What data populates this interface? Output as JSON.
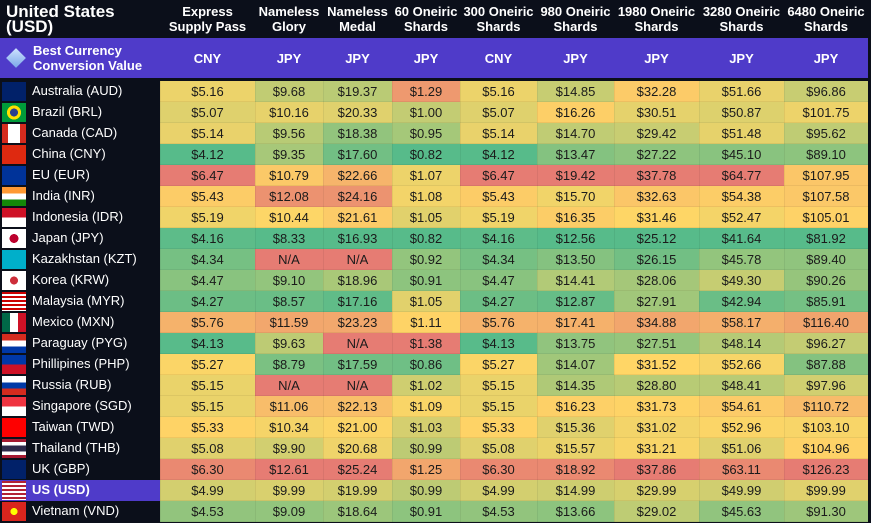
{
  "title": "United States (USD)",
  "columns": [
    "Express Supply Pass",
    "Nameless Glory",
    "Nameless Medal",
    "60 Oneiric Shards",
    "300 Oneiric Shards",
    "980 Oneiric Shards",
    "1980 Oneiric Shards",
    "3280 Oneiric Shards",
    "6480 Oneiric Shards"
  ],
  "best": {
    "label": "Best Currency Conversion Value",
    "icon": "gem-icon",
    "values": [
      "CNY",
      "JPY",
      "JPY",
      "JPY",
      "CNY",
      "JPY",
      "JPY",
      "JPY",
      "JPY"
    ]
  },
  "colors": {
    "low": "#57bb8a",
    "mid": "#ffd666",
    "high": "#e67c73",
    "highlight": "#4f3bc9",
    "background": "#0b0f1a"
  },
  "rows": [
    {
      "country": "Australia (AUD)",
      "flag": "au",
      "values": [
        "$5.16",
        "$9.68",
        "$19.37",
        "$1.29",
        "$5.16",
        "$14.85",
        "$32.28",
        "$51.66",
        "$96.86"
      ]
    },
    {
      "country": "Brazil (BRL)",
      "flag": "br",
      "values": [
        "$5.07",
        "$10.16",
        "$20.33",
        "$1.00",
        "$5.07",
        "$16.26",
        "$30.51",
        "$50.87",
        "$101.75"
      ]
    },
    {
      "country": "Canada (CAD)",
      "flag": "ca",
      "values": [
        "$5.14",
        "$9.56",
        "$18.38",
        "$0.95",
        "$5.14",
        "$14.70",
        "$29.42",
        "$51.48",
        "$95.62"
      ]
    },
    {
      "country": "China (CNY)",
      "flag": "cn",
      "values": [
        "$4.12",
        "$9.35",
        "$17.60",
        "$0.82",
        "$4.12",
        "$13.47",
        "$27.22",
        "$45.10",
        "$89.10"
      ]
    },
    {
      "country": "EU (EUR)",
      "flag": "eu",
      "values": [
        "$6.47",
        "$10.79",
        "$22.66",
        "$1.07",
        "$6.47",
        "$19.42",
        "$37.78",
        "$64.77",
        "$107.95"
      ]
    },
    {
      "country": "India (INR)",
      "flag": "in",
      "values": [
        "$5.43",
        "$12.08",
        "$24.16",
        "$1.08",
        "$5.43",
        "$15.70",
        "$32.63",
        "$54.38",
        "$107.58"
      ]
    },
    {
      "country": "Indonesia (IDR)",
      "flag": "id",
      "values": [
        "$5.19",
        "$10.44",
        "$21.61",
        "$1.05",
        "$5.19",
        "$16.35",
        "$31.46",
        "$52.47",
        "$105.01"
      ]
    },
    {
      "country": "Japan (JPY)",
      "flag": "jp",
      "values": [
        "$4.16",
        "$8.33",
        "$16.93",
        "$0.82",
        "$4.16",
        "$12.56",
        "$25.12",
        "$41.64",
        "$81.92"
      ]
    },
    {
      "country": "Kazakhstan (KZT)",
      "flag": "kz",
      "values": [
        "$4.34",
        "N/A",
        "N/A",
        "$0.92",
        "$4.34",
        "$13.50",
        "$26.15",
        "$45.78",
        "$89.40"
      ]
    },
    {
      "country": "Korea (KRW)",
      "flag": "kr",
      "values": [
        "$4.47",
        "$9.10",
        "$18.96",
        "$0.91",
        "$4.47",
        "$14.41",
        "$28.06",
        "$49.30",
        "$90.26"
      ]
    },
    {
      "country": "Malaysia (MYR)",
      "flag": "my",
      "values": [
        "$4.27",
        "$8.57",
        "$17.16",
        "$1.05",
        "$4.27",
        "$12.87",
        "$27.91",
        "$42.94",
        "$85.91"
      ]
    },
    {
      "country": "Mexico (MXN)",
      "flag": "mx",
      "values": [
        "$5.76",
        "$11.59",
        "$23.23",
        "$1.11",
        "$5.76",
        "$17.41",
        "$34.88",
        "$58.17",
        "$116.40"
      ]
    },
    {
      "country": "Paraguay (PYG)",
      "flag": "py",
      "values": [
        "$4.13",
        "$9.63",
        "N/A",
        "$1.38",
        "$4.13",
        "$13.75",
        "$27.51",
        "$48.14",
        "$96.27"
      ]
    },
    {
      "country": "Phillipines (PHP)",
      "flag": "ph",
      "values": [
        "$5.27",
        "$8.79",
        "$17.59",
        "$0.86",
        "$5.27",
        "$14.07",
        "$31.52",
        "$52.66",
        "$87.88"
      ]
    },
    {
      "country": "Russia (RUB)",
      "flag": "ru",
      "values": [
        "$5.15",
        "N/A",
        "N/A",
        "$1.02",
        "$5.15",
        "$14.35",
        "$28.80",
        "$48.41",
        "$97.96"
      ]
    },
    {
      "country": "Singapore (SGD)",
      "flag": "sg",
      "values": [
        "$5.15",
        "$11.06",
        "$22.13",
        "$1.09",
        "$5.15",
        "$16.23",
        "$31.73",
        "$54.61",
        "$110.72"
      ]
    },
    {
      "country": "Taiwan (TWD)",
      "flag": "tw",
      "values": [
        "$5.33",
        "$10.34",
        "$21.00",
        "$1.03",
        "$5.33",
        "$15.36",
        "$31.02",
        "$52.96",
        "$103.10"
      ]
    },
    {
      "country": "Thailand (THB)",
      "flag": "th",
      "values": [
        "$5.08",
        "$9.90",
        "$20.68",
        "$0.99",
        "$5.08",
        "$15.57",
        "$31.21",
        "$51.06",
        "$104.96"
      ]
    },
    {
      "country": "UK (GBP)",
      "flag": "gb",
      "values": [
        "$6.30",
        "$12.61",
        "$25.24",
        "$1.25",
        "$6.30",
        "$18.92",
        "$37.86",
        "$63.11",
        "$126.23"
      ]
    },
    {
      "country": "US (USD)",
      "flag": "us",
      "highlight": true,
      "values": [
        "$4.99",
        "$9.99",
        "$19.99",
        "$0.99",
        "$4.99",
        "$14.99",
        "$29.99",
        "$49.99",
        "$99.99"
      ]
    },
    {
      "country": "Vietnam (VND)",
      "flag": "vn",
      "values": [
        "$4.53",
        "$9.09",
        "$18.64",
        "$0.91",
        "$4.53",
        "$13.66",
        "$29.02",
        "$45.63",
        "$91.30"
      ]
    }
  ]
}
